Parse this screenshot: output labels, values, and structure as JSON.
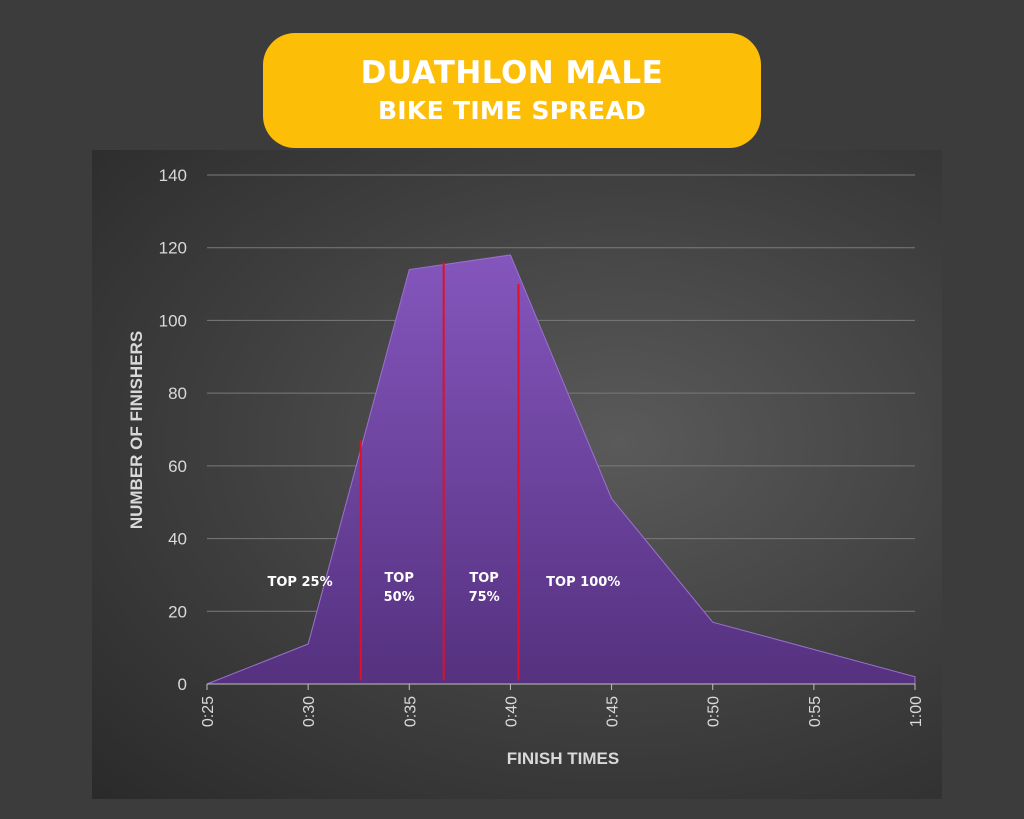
{
  "title": {
    "line1": "DUATHLON MALE",
    "line2": "BIKE TIME SPREAD"
  },
  "colors": {
    "background": "#3c3c3c",
    "title_box": "#fdbe07",
    "area_fill": "#7c4fb3",
    "marker_line": "#e0102a",
    "text": "#d9d9d9"
  },
  "chart_data": {
    "type": "area",
    "xlabel": "FINISH TIMES",
    "ylabel": "NUMBER OF FINISHERS",
    "x_categories": [
      "0:25",
      "0:30",
      "0:35",
      "0:40",
      "0:45",
      "0:50",
      "0:55",
      "1:00"
    ],
    "points": [
      {
        "x": "0:25",
        "y": 0
      },
      {
        "x": "0:30",
        "y": 11
      },
      {
        "x": "0:35",
        "y": 114
      },
      {
        "x": "0:40",
        "y": 118
      },
      {
        "x": "0:45",
        "y": 51
      },
      {
        "x": "0:50",
        "y": 17
      },
      {
        "x": "1:00",
        "y": 2
      }
    ],
    "ylim": [
      0,
      140
    ],
    "yticks": [
      0,
      20,
      40,
      60,
      80,
      100,
      120,
      140
    ],
    "grid": true,
    "markers": [
      {
        "x_minutes": 32.6,
        "height": 67
      },
      {
        "x_minutes": 36.7,
        "height": 116
      },
      {
        "x_minutes": 40.4,
        "height": 110
      }
    ],
    "region_labels": [
      {
        "line1": "TOP 25%",
        "line2": "",
        "x_minutes": 29.6,
        "y": 27
      },
      {
        "line1": "TOP",
        "line2": "50%",
        "x_minutes": 34.5,
        "y": 28
      },
      {
        "line1": "TOP",
        "line2": "75%",
        "x_minutes": 38.7,
        "y": 28
      },
      {
        "line1": "TOP 100%",
        "line2": "",
        "x_minutes": 43.6,
        "y": 27
      }
    ]
  }
}
